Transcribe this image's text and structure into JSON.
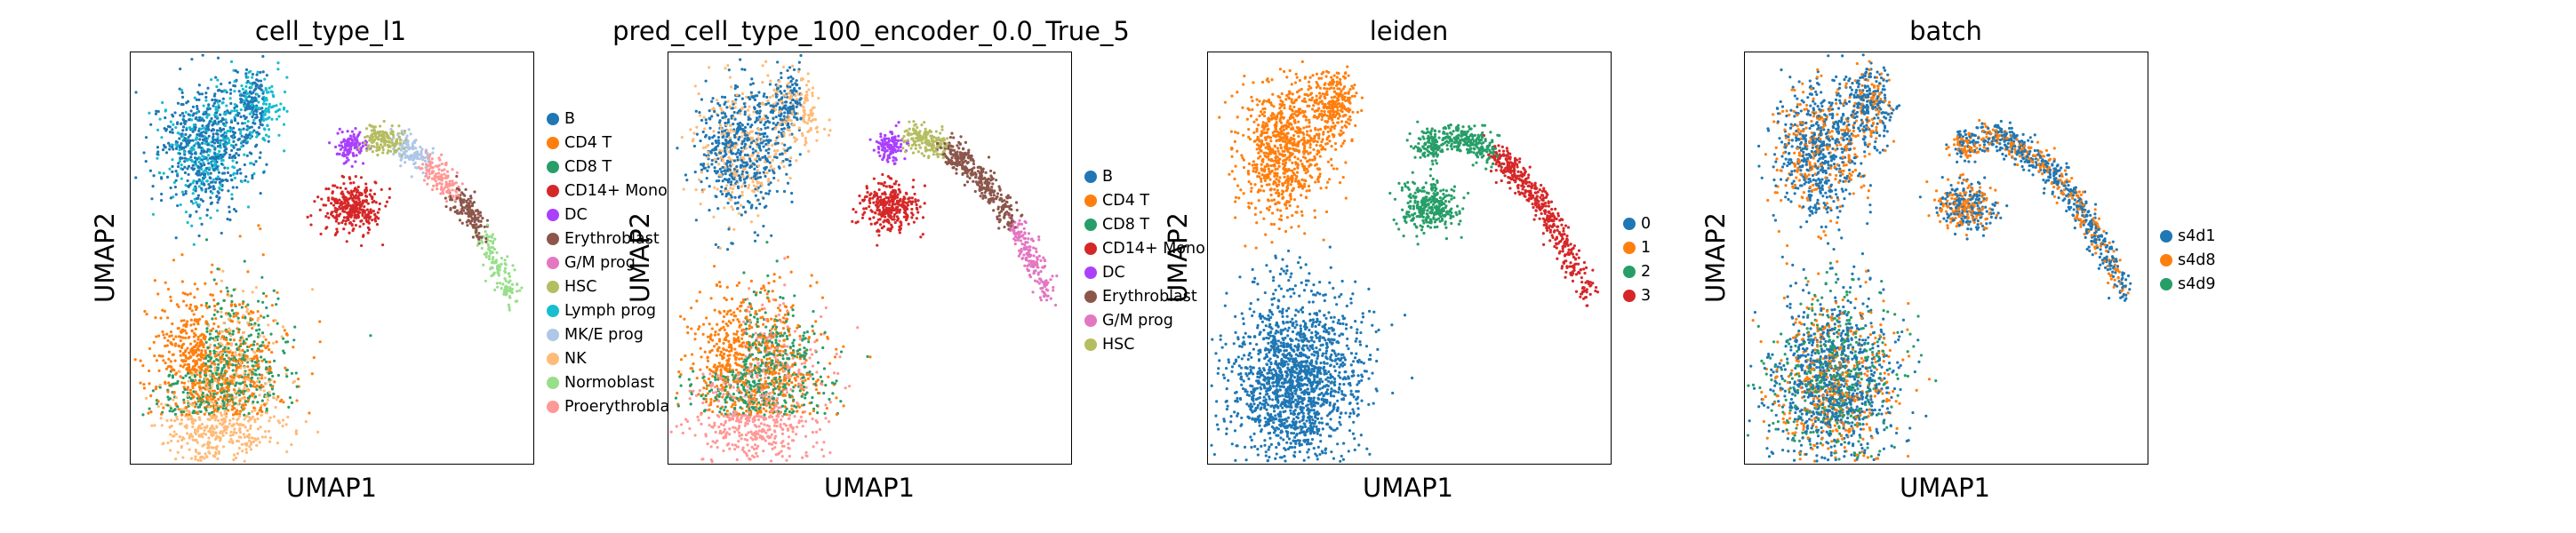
{
  "chart_data": [
    {
      "type": "scatter",
      "title": "cell_type_l1",
      "xlabel": "UMAP1",
      "ylabel": "UMAP2",
      "legend_placement": "right",
      "series": [
        {
          "name": "B",
          "color": "#1f77b4"
        },
        {
          "name": "CD4 T",
          "color": "#ff7f0e"
        },
        {
          "name": "CD8 T",
          "color": "#279e68"
        },
        {
          "name": "CD14+ Mono",
          "color": "#d62728"
        },
        {
          "name": "DC",
          "color": "#aa40fc"
        },
        {
          "name": "Erythroblast",
          "color": "#8c564b"
        },
        {
          "name": "G/M prog",
          "color": "#e377c2"
        },
        {
          "name": "HSC",
          "color": "#b5bd61"
        },
        {
          "name": "Lymph prog",
          "color": "#17becf"
        },
        {
          "name": "MK/E prog",
          "color": "#aec7e8"
        },
        {
          "name": "NK",
          "color": "#ffbb78"
        },
        {
          "name": "Normoblast",
          "color": "#98df8a"
        },
        {
          "name": "Proerythroblast",
          "color": "#ff9896"
        }
      ]
    },
    {
      "type": "scatter",
      "title": "pred_cell_type_100_encoder_0.0_True_5",
      "xlabel": "UMAP1",
      "ylabel": "UMAP2",
      "legend_placement": "right",
      "series": [
        {
          "name": "B",
          "color": "#1f77b4"
        },
        {
          "name": "CD4 T",
          "color": "#ff7f0e"
        },
        {
          "name": "CD8 T",
          "color": "#279e68"
        },
        {
          "name": "CD14+ Mono",
          "color": "#d62728"
        },
        {
          "name": "DC",
          "color": "#aa40fc"
        },
        {
          "name": "Erythroblast",
          "color": "#8c564b"
        },
        {
          "name": "G/M prog",
          "color": "#e377c2"
        },
        {
          "name": "HSC",
          "color": "#b5bd61"
        }
      ]
    },
    {
      "type": "scatter",
      "title": "leiden",
      "xlabel": "UMAP1",
      "ylabel": "UMAP2",
      "legend_placement": "right",
      "series": [
        {
          "name": "0",
          "color": "#1f77b4"
        },
        {
          "name": "1",
          "color": "#ff7f0e"
        },
        {
          "name": "2",
          "color": "#279e68"
        },
        {
          "name": "3",
          "color": "#d62728"
        }
      ]
    },
    {
      "type": "scatter",
      "title": "batch",
      "xlabel": "UMAP1",
      "ylabel": "UMAP2",
      "legend_placement": "right",
      "series": [
        {
          "name": "s4d1",
          "color": "#1f77b4"
        },
        {
          "name": "s4d8",
          "color": "#ff7f0e"
        },
        {
          "name": "s4d9",
          "color": "#279e68"
        }
      ]
    }
  ]
}
